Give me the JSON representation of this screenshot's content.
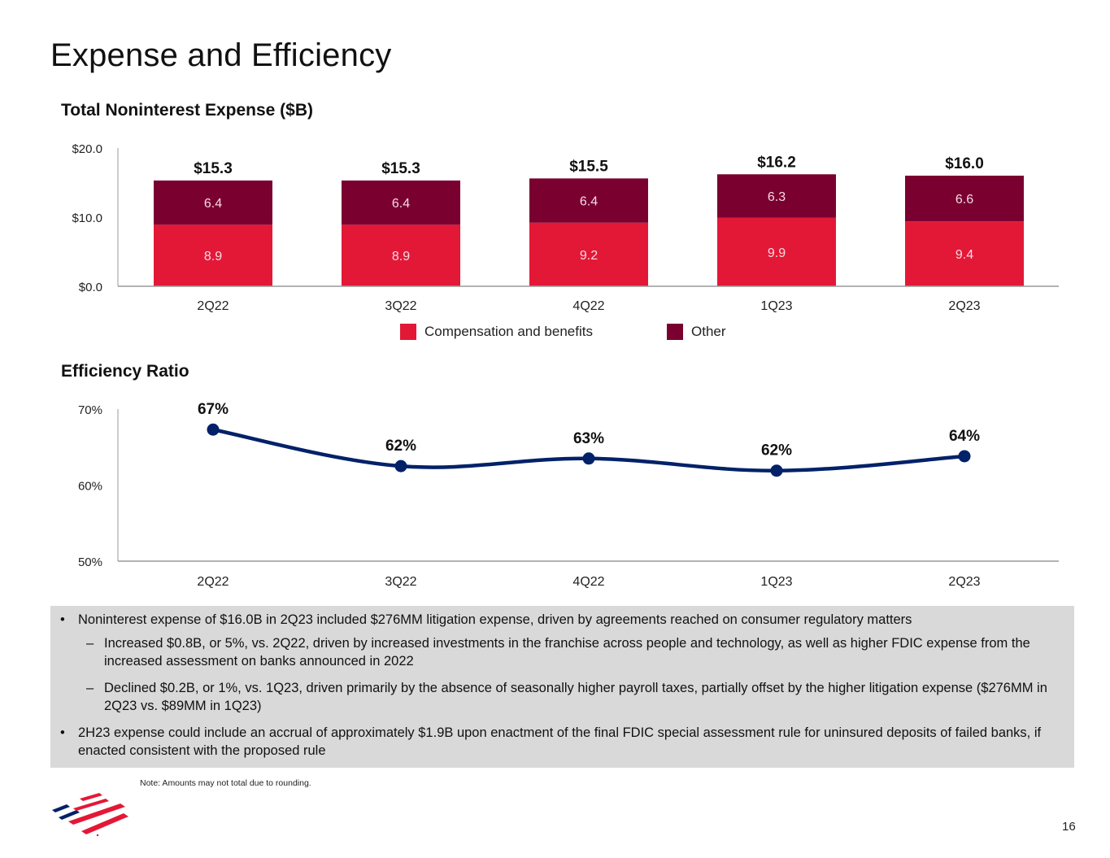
{
  "page": {
    "title": "Expense and Efficiency",
    "page_number": "16",
    "note": "Note: Amounts may not total due to rounding.",
    "logo": "bank-flag-logo"
  },
  "colors": {
    "compensation": "#E31837",
    "other": "#7A0030",
    "line": "#012169",
    "commentary_bg": "#D9D9D9"
  },
  "chart_data": [
    {
      "type": "bar",
      "stacked": true,
      "title": "Total Noninterest Expense ($B)",
      "xlabel": "",
      "ylabel": "",
      "categories": [
        "2Q22",
        "3Q22",
        "4Q22",
        "1Q23",
        "2Q23"
      ],
      "series": [
        {
          "name": "Compensation and benefits",
          "values": [
            8.9,
            8.9,
            9.2,
            9.9,
            9.4
          ],
          "labels": [
            "8.9",
            "8.9",
            "9.2",
            "9.9",
            "9.4"
          ]
        },
        {
          "name": "Other",
          "values": [
            6.4,
            6.4,
            6.4,
            6.3,
            6.6
          ],
          "labels": [
            "6.4",
            "6.4",
            "6.4",
            "6.3",
            "6.6"
          ]
        }
      ],
      "totals": [
        15.3,
        15.3,
        15.5,
        16.2,
        16.0
      ],
      "total_labels": [
        "$15.3",
        "$15.3",
        "$15.5",
        "$16.2",
        "$16.0"
      ],
      "ylim": [
        0,
        20
      ],
      "yticks": [
        0,
        10,
        20
      ],
      "ytick_labels": [
        "$0.0",
        "$10.0",
        "$20.0"
      ],
      "grid": false,
      "legend": {
        "placement": "bottom",
        "entries": [
          "Compensation and benefits",
          "Other"
        ]
      }
    },
    {
      "type": "line",
      "title": "Efficiency Ratio",
      "xlabel": "",
      "ylabel": "",
      "categories": [
        "2Q22",
        "3Q22",
        "4Q22",
        "1Q23",
        "2Q23"
      ],
      "series": [
        {
          "name": "Efficiency Ratio",
          "values": [
            67.3,
            62.5,
            63.5,
            61.9,
            63.8
          ],
          "labels": [
            "67%",
            "62%",
            "63%",
            "62%",
            "64%"
          ]
        }
      ],
      "ylim": [
        50,
        70
      ],
      "yticks": [
        50,
        60,
        70
      ],
      "ytick_labels": [
        "50%",
        "60%",
        "70%"
      ],
      "grid": false,
      "smooth": true,
      "markers": true
    }
  ],
  "commentary": {
    "bullets": [
      {
        "level": 1,
        "text": "Noninterest expense of $16.0B in 2Q23 included $276MM litigation expense, driven by agreements reached on consumer regulatory matters"
      },
      {
        "level": 2,
        "text": "Increased $0.8B, or 5%, vs. 2Q22, driven by increased investments in the franchise across people and technology, as well as higher FDIC expense from the increased assessment on banks announced in 2022"
      },
      {
        "level": 2,
        "text": "Declined $0.2B, or 1%, vs. 1Q23, driven primarily by the absence of seasonally higher payroll taxes, partially offset by the higher litigation expense ($276MM in 2Q23 vs. $89MM in 1Q23)"
      },
      {
        "level": 1,
        "text": "2H23 expense could include an accrual of approximately $1.9B upon enactment of the final FDIC special assessment rule for uninsured deposits of failed banks, if enacted consistent with the proposed rule"
      }
    ]
  }
}
